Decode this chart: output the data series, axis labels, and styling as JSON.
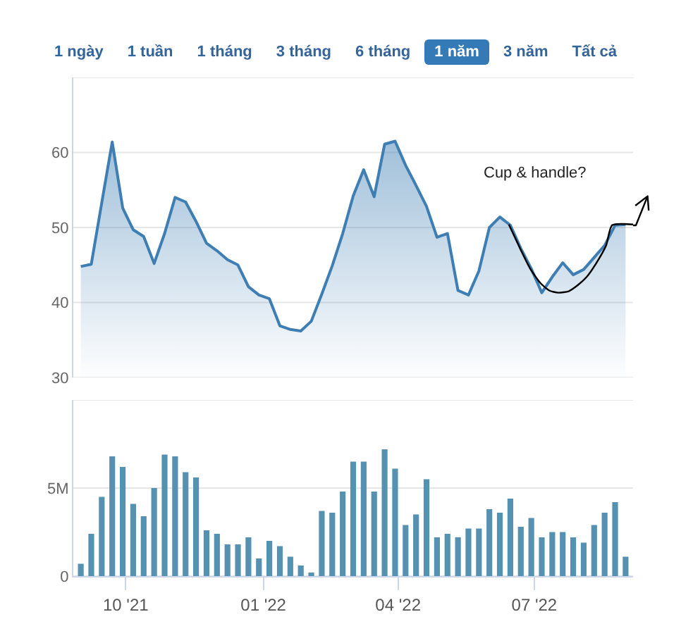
{
  "chart_data": [
    {
      "type": "other",
      "annotations": [
        "1 ngày",
        "1 tuần",
        "1 tháng",
        "3 tháng",
        "6 tháng",
        "1 năm",
        "3 năm",
        "Tất cả"
      ],
      "colors": [
        null,
        null,
        null,
        null,
        null,
        "#337ab7",
        null,
        null
      ]
    },
    {
      "type": "area",
      "x": [
        "2021-09-01",
        "2021-09-08",
        "2021-09-15",
        "2021-09-22",
        "2021-09-29",
        "2021-10-06",
        "2021-10-13",
        "2021-10-20",
        "2021-10-27",
        "2021-11-03",
        "2021-11-10",
        "2021-11-17",
        "2021-11-24",
        "2021-12-01",
        "2021-12-08",
        "2021-12-15",
        "2021-12-22",
        "2021-12-29",
        "2022-01-05",
        "2022-01-12",
        "2022-01-19",
        "2022-01-26",
        "2022-02-02",
        "2022-02-09",
        "2022-02-16",
        "2022-02-23",
        "2022-03-02",
        "2022-03-09",
        "2022-03-16",
        "2022-03-23",
        "2022-03-30",
        "2022-04-06",
        "2022-04-13",
        "2022-04-20",
        "2022-04-27",
        "2022-05-04",
        "2022-05-11",
        "2022-05-18",
        "2022-05-25",
        "2022-06-01",
        "2022-06-08",
        "2022-06-15",
        "2022-06-22",
        "2022-06-29",
        "2022-07-06",
        "2022-07-13",
        "2022-07-20",
        "2022-07-27",
        "2022-08-03",
        "2022-08-10",
        "2022-08-17",
        "2022-08-24",
        "2022-08-31"
      ],
      "series": [
        {
          "color": "#3e7eb3",
          "values": [
            44.8,
            45.1,
            53.3,
            61.4,
            52.6,
            49.7,
            48.8,
            45.2,
            49.2,
            54.0,
            53.4,
            50.8,
            47.9,
            46.9,
            45.7,
            45.0,
            42.1,
            41.0,
            40.5,
            36.9,
            36.4,
            36.2,
            37.5,
            41.1,
            44.9,
            49.2,
            54.2,
            57.7,
            54.1,
            61.1,
            61.5,
            58.3,
            55.6,
            52.8,
            48.7,
            49.2,
            41.6,
            41.0,
            44.2,
            50.0,
            51.4,
            50.3,
            47.2,
            44.5,
            41.3,
            43.4,
            45.3,
            43.7,
            44.4,
            46.0,
            47.6,
            50.3,
            50.4
          ]
        },
        {
          "type": "line",
          "color": "#000000",
          "x": [
            "2022-06-14",
            "2022-06-22",
            "2022-06-28",
            "2022-07-05",
            "2022-07-11",
            "2022-07-17",
            "2022-07-24",
            "2022-07-30",
            "2022-08-05",
            "2022-08-11",
            "2022-08-18",
            "2022-08-22",
            "2022-09-05"
          ],
          "values": [
            50.4,
            47.0,
            44.6,
            42.6,
            41.6,
            41.3,
            41.5,
            42.3,
            43.4,
            45.1,
            47.6,
            50.3,
            50.4
          ]
        }
      ],
      "xlim": [
        "2021-08-27",
        "2022-09-05"
      ],
      "ylim": [
        30,
        70
      ],
      "yticks": [
        30,
        40,
        50,
        60,
        {
          "value": 70,
          "label": null
        }
      ],
      "grid": "y",
      "tick_labels": "y",
      "annotations": [
        "Cup & handle?"
      ]
    },
    {
      "type": "bar",
      "x": [
        "2021-09-01",
        "2021-09-08",
        "2021-09-15",
        "2021-09-22",
        "2021-09-29",
        "2021-10-06",
        "2021-10-13",
        "2021-10-20",
        "2021-10-27",
        "2021-11-03",
        "2021-11-10",
        "2021-11-17",
        "2021-11-24",
        "2021-12-01",
        "2021-12-08",
        "2021-12-15",
        "2021-12-22",
        "2021-12-29",
        "2022-01-05",
        "2022-01-12",
        "2022-01-19",
        "2022-01-26",
        "2022-02-02",
        "2022-02-09",
        "2022-02-16",
        "2022-02-23",
        "2022-03-02",
        "2022-03-09",
        "2022-03-16",
        "2022-03-23",
        "2022-03-30",
        "2022-04-06",
        "2022-04-13",
        "2022-04-20",
        "2022-04-27",
        "2022-05-04",
        "2022-05-11",
        "2022-05-18",
        "2022-05-25",
        "2022-06-01",
        "2022-06-08",
        "2022-06-15",
        "2022-06-22",
        "2022-06-29",
        "2022-07-06",
        "2022-07-13",
        "2022-07-20",
        "2022-07-27",
        "2022-08-03",
        "2022-08-10",
        "2022-08-17",
        "2022-08-24",
        "2022-08-31"
      ],
      "values": [
        700000,
        2400000,
        4500000,
        6800000,
        6200000,
        4100000,
        3400000,
        5000000,
        6900000,
        6800000,
        5900000,
        5600000,
        2600000,
        2400000,
        1800000,
        1800000,
        2200000,
        1000000,
        2000000,
        1700000,
        1100000,
        600000,
        200000,
        3700000,
        3600000,
        4800000,
        6500000,
        6500000,
        4800000,
        7200000,
        6100000,
        2900000,
        3500000,
        5500000,
        2200000,
        2400000,
        2200000,
        2700000,
        2700000,
        3800000,
        3600000,
        4400000,
        2800000,
        3300000,
        2200000,
        2500000,
        2500000,
        2200000,
        1900000,
        2900000,
        3600000,
        4200000,
        1100000
      ],
      "color": "#5591b0",
      "xlim": [
        "2021-08-27",
        "2022-09-05"
      ],
      "xticks": [
        {
          "value": "2021-10-01",
          "label": "10 '21"
        },
        {
          "value": "2022-01-01",
          "label": "01 '22"
        },
        {
          "value": "2022-04-01",
          "label": "04 '22"
        },
        {
          "value": "2022-07-01",
          "label": "07 '22"
        }
      ],
      "ylim": [
        0,
        10000000
      ],
      "yticks": [
        0,
        {
          "value": 5000000,
          "label": "5M"
        },
        {
          "value": 10000000,
          "label": null
        }
      ],
      "grid": "y"
    }
  ]
}
